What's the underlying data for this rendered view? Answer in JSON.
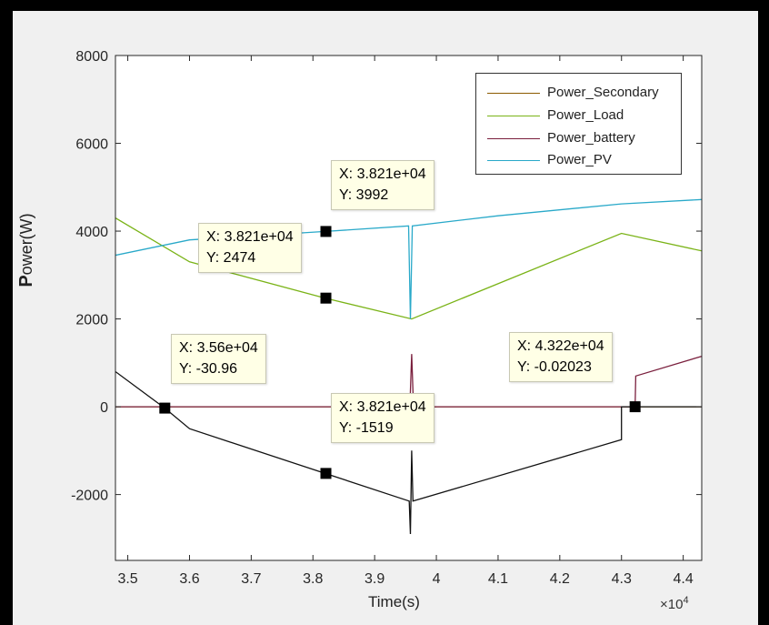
{
  "chart_data": {
    "type": "line",
    "xlabel": "Time(s)",
    "xlabel_exponent": "×10",
    "xlabel_exponent_power": "4",
    "ylabel_first": "P",
    "ylabel_rest": "ower(W)",
    "xlim": [
      3.48,
      4.43
    ],
    "ylim": [
      -3500,
      8000
    ],
    "x_ticks": [
      3.5,
      3.6,
      3.7,
      3.8,
      3.9,
      4,
      4.1,
      4.2,
      4.3,
      4.4
    ],
    "x_tick_labels": [
      "3.5",
      "3.6",
      "3.7",
      "3.8",
      "3.9",
      "4",
      "4.1",
      "4.2",
      "4.3",
      "4.4"
    ],
    "y_ticks": [
      -2000,
      0,
      2000,
      4000,
      6000,
      8000
    ],
    "y_tick_labels": [
      "-2000",
      "0",
      "2000",
      "4000",
      "6000",
      "8000"
    ],
    "x_scale_note": "x values in units of 10^4 s",
    "legend_position": "top-right",
    "series": [
      {
        "name": "Power_Secondary",
        "color": "#8b5a00",
        "x": [
          3.48,
          4.3,
          4.43
        ],
        "y": [
          0,
          0,
          0
        ]
      },
      {
        "name": "Power_Load",
        "color": "#7ab317",
        "x": [
          3.48,
          3.6,
          3.82,
          3.96,
          4.3,
          4.43
        ],
        "y": [
          4300,
          3300,
          2474,
          2000,
          3950,
          3550
        ]
      },
      {
        "name": "Power_battery",
        "color": "#7a1f3d",
        "x": [
          3.48,
          3.56,
          3.6,
          3.82,
          3.957,
          3.96,
          3.963,
          4.0,
          4.322,
          4.323,
          4.43
        ],
        "y": [
          0,
          0,
          0,
          0,
          0,
          1200,
          0,
          0,
          -0.02,
          700,
          1150
        ]
      },
      {
        "name": "Power_PV",
        "color": "#29a9c9",
        "x": [
          3.48,
          3.6,
          3.82,
          3.955,
          3.958,
          3.961,
          4.1,
          4.3,
          4.43
        ],
        "y": [
          3450,
          3800,
          3992,
          4120,
          2000,
          4120,
          4350,
          4620,
          4720
        ]
      },
      {
        "name": "",
        "color": "#111111",
        "x": [
          3.48,
          3.56,
          3.6,
          3.82,
          3.956,
          3.958,
          3.96,
          3.962,
          4.3,
          4.3,
          4.43
        ],
        "y": [
          800,
          -30.96,
          -500,
          -1519,
          -2150,
          -2900,
          -1000,
          -2150,
          -750,
          0,
          0
        ]
      }
    ],
    "data_tips": [
      {
        "x_label": "X: 3.821e+04",
        "y_label": "Y: 3992",
        "x": 3.821,
        "y": 3992
      },
      {
        "x_label": "X: 3.821e+04",
        "y_label": "Y: 2474",
        "x": 3.821,
        "y": 2474
      },
      {
        "x_label": "X: 3.56e+04",
        "y_label": "Y: -30.96",
        "x": 3.56,
        "y": -30.96
      },
      {
        "x_label": "X: 3.821e+04",
        "y_label": "Y: -1519",
        "x": 3.821,
        "y": -1519
      },
      {
        "x_label": "X: 4.322e+04",
        "y_label": "Y: -0.02023",
        "x": 4.322,
        "y": -0.02023
      }
    ]
  },
  "legend": {
    "items": [
      {
        "label": "Power_Secondary",
        "color": "#8b5a00"
      },
      {
        "label": "Power_Load",
        "color": "#7ab317"
      },
      {
        "label": "Power_battery",
        "color": "#7a1f3d"
      },
      {
        "label": "Power_PV",
        "color": "#29a9c9"
      }
    ]
  }
}
